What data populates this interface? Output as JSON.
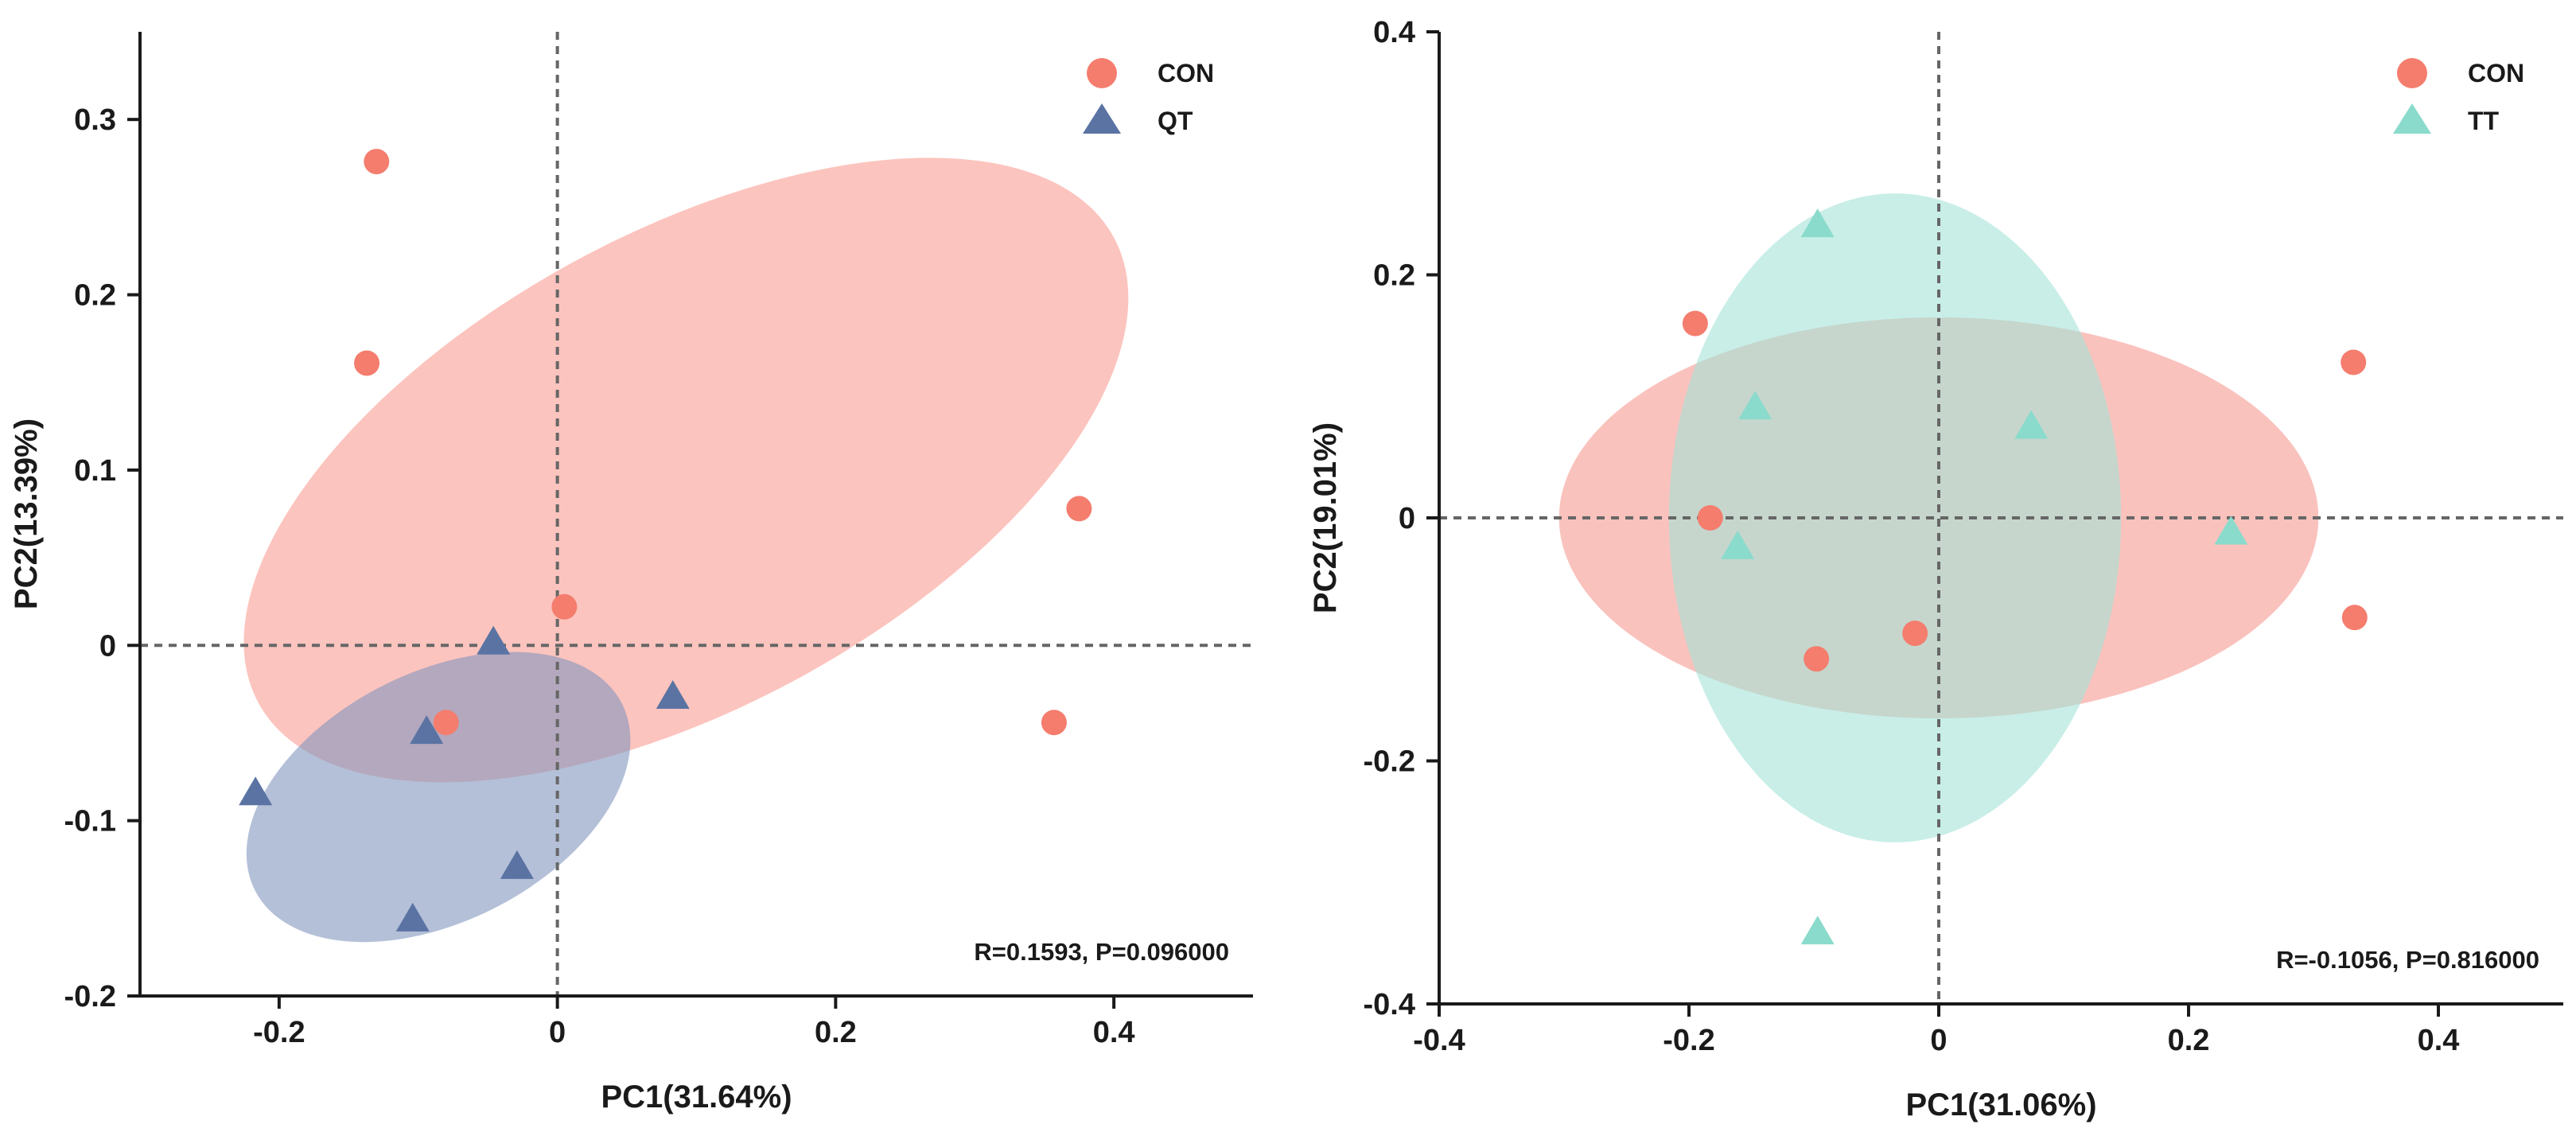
{
  "chart_data": [
    {
      "type": "scatter",
      "name": "pcoa-con-vs-qt",
      "xlabel": "PC1(31.64%)",
      "ylabel": "PC2(13.39%)",
      "xlim": [
        -0.3,
        0.5
      ],
      "ylim": [
        -0.2,
        0.35
      ],
      "xticks": [
        -0.2,
        0,
        0.2,
        0.4
      ],
      "xtick_labels": [
        "-0.2",
        "0",
        "0.2",
        "0.4"
      ],
      "yticks": [
        -0.2,
        -0.1,
        0,
        0.1,
        0.2,
        0.3
      ],
      "ytick_labels": [
        "-0.2",
        "-0.1",
        "0",
        "0.1",
        "0.2",
        "0.3"
      ],
      "reference_lines": {
        "x": 0,
        "y": 0
      },
      "legend_position": "top-right",
      "annotation": "R=0.1593, P=0.096000",
      "series": [
        {
          "name": "CON",
          "marker": "circle",
          "color": "#F47D6E",
          "x": [
            -0.13,
            -0.137,
            0.375,
            0.005,
            -0.08,
            0.357
          ],
          "y": [
            0.276,
            0.161,
            0.078,
            0.022,
            -0.044,
            -0.044
          ],
          "ellipse": {
            "cx": 0.0925,
            "cy": 0.1,
            "rx": 0.35,
            "ry": 0.135,
            "angle_deg": 28.6,
            "color": "#FA9C93"
          }
        },
        {
          "name": "QT",
          "marker": "triangle",
          "color": "#5A73A3",
          "x": [
            -0.046,
            0.083,
            -0.094,
            -0.217,
            -0.029,
            -0.104
          ],
          "y": [
            0.001,
            -0.03,
            -0.05,
            -0.085,
            -0.127,
            -0.157
          ],
          "ellipse": {
            "cx": -0.0855,
            "cy": -0.0865,
            "rx": 0.148,
            "ry": 0.071,
            "angle_deg": 27,
            "color": "#8296BE"
          }
        }
      ]
    },
    {
      "type": "scatter",
      "name": "pcoa-con-vs-tt",
      "xlabel": "PC1(31.06%)",
      "ylabel": "PC2(19.01%)",
      "xlim": [
        -0.4,
        0.5
      ],
      "ylim": [
        -0.4,
        0.4
      ],
      "xticks": [
        -0.4,
        -0.2,
        0,
        0.2,
        0.4
      ],
      "xtick_labels": [
        "-0.4",
        "-0.2",
        "0",
        "0.2",
        "0.4"
      ],
      "yticks": [
        -0.4,
        -0.2,
        0,
        0.2,
        0.4
      ],
      "ytick_labels": [
        "-0.4",
        "-0.2",
        "0",
        "0.2",
        "0.4"
      ],
      "reference_lines": {
        "x": 0,
        "y": 0
      },
      "legend_position": "top-right",
      "annotation": "R=-0.1056, P=0.816000",
      "series": [
        {
          "name": "CON",
          "marker": "circle",
          "color": "#F47D6E",
          "x": [
            -0.195,
            0.332,
            -0.183,
            -0.019,
            -0.098,
            0.333
          ],
          "y": [
            0.16,
            0.128,
            0.0,
            -0.095,
            -0.116,
            -0.082
          ],
          "ellipse": {
            "cx": 0.0,
            "cy": 0.0,
            "rx": 0.304,
            "ry": 0.165,
            "angle_deg": 0,
            "color": "#F79A91"
          }
        },
        {
          "name": "TT",
          "marker": "triangle",
          "color": "#8ADBCC",
          "x": [
            -0.097,
            -0.147,
            0.074,
            0.234,
            -0.161,
            -0.097
          ],
          "y": [
            0.24,
            0.09,
            0.074,
            -0.013,
            -0.025,
            -0.342
          ],
          "ellipse": {
            "cx": -0.035,
            "cy": 0.0,
            "rx": 0.181,
            "ry": 0.267,
            "angle_deg": 0,
            "color": "#A4E2D7"
          }
        }
      ]
    }
  ]
}
